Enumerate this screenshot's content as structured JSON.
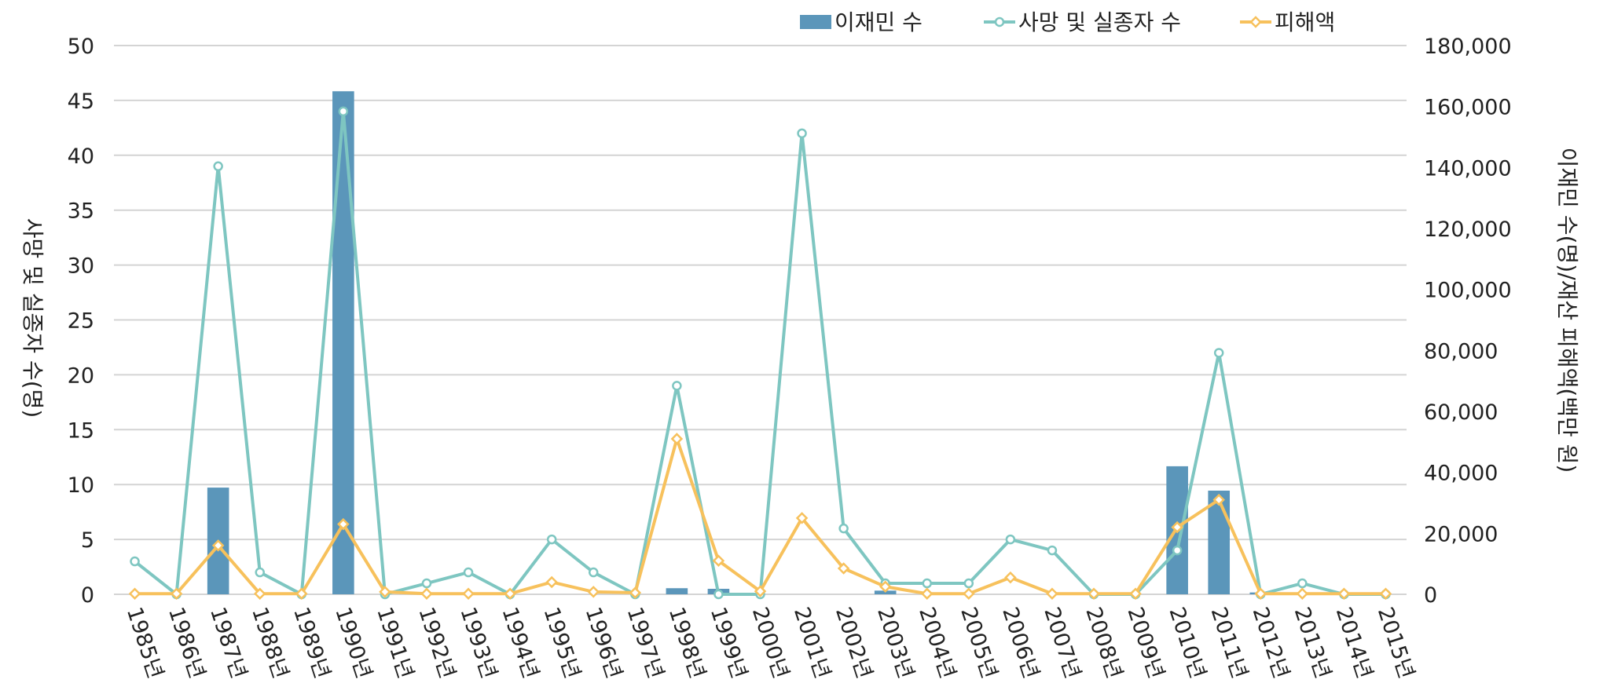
{
  "chart_data": {
    "type": "bar",
    "categories": [
      "1985년",
      "1986년",
      "1987년",
      "1988년",
      "1989년",
      "1990년",
      "1991년",
      "1992년",
      "1993년",
      "1994년",
      "1995년",
      "1996년",
      "1997년",
      "1998년",
      "1999년",
      "2000년",
      "2001년",
      "2002년",
      "2003년",
      "2004년",
      "2005년",
      "2006년",
      "2007년",
      "2008년",
      "2009년",
      "2010년",
      "2011년",
      "2012년",
      "2013년",
      "2014년",
      "2015년"
    ],
    "series": [
      {
        "name": "이재민 수",
        "type": "bar",
        "axis": "right",
        "color": "#5b96ba",
        "values": [
          0,
          0,
          35000,
          0,
          0,
          165000,
          0,
          0,
          0,
          0,
          0,
          0,
          0,
          2000,
          1800,
          0,
          0,
          0,
          1200,
          0,
          0,
          0,
          0,
          0,
          0,
          42000,
          34000,
          600,
          0,
          0,
          0
        ]
      },
      {
        "name": "사망 및 실종자 수",
        "type": "line",
        "axis": "left",
        "color": "#7ec6c1",
        "values": [
          3,
          0,
          39,
          2,
          0,
          44,
          0,
          1,
          2,
          0,
          5,
          2,
          0,
          19,
          0,
          0,
          42,
          6,
          1,
          1,
          1,
          5,
          4,
          0,
          0,
          4,
          22,
          0,
          1,
          0,
          0
        ]
      },
      {
        "name": "피해액",
        "type": "line",
        "axis": "right",
        "color": "#f7c15c",
        "values": [
          200,
          200,
          16000,
          200,
          200,
          23000,
          800,
          200,
          200,
          200,
          4000,
          800,
          500,
          51000,
          11000,
          1000,
          25000,
          8500,
          2500,
          200,
          200,
          5500,
          200,
          200,
          200,
          22000,
          31000,
          200,
          200,
          200,
          200
        ]
      }
    ],
    "y_left": {
      "label": "사망 및 실종자 수(명)",
      "ylim": [
        0,
        50
      ],
      "ticks": [
        "0",
        "5",
        "10",
        "15",
        "20",
        "25",
        "30",
        "35",
        "40",
        "45",
        "50"
      ]
    },
    "y_right": {
      "label": "이재민 수(명)/재산 피해액(백만 원)",
      "ylim": [
        0,
        180000
      ],
      "ticks": [
        "0",
        "20,000",
        "40,000",
        "60,000",
        "80,000",
        "100,000",
        "120,000",
        "140,000",
        "160,000",
        "180,000"
      ]
    },
    "grid": true,
    "legend_position": "top-right"
  }
}
